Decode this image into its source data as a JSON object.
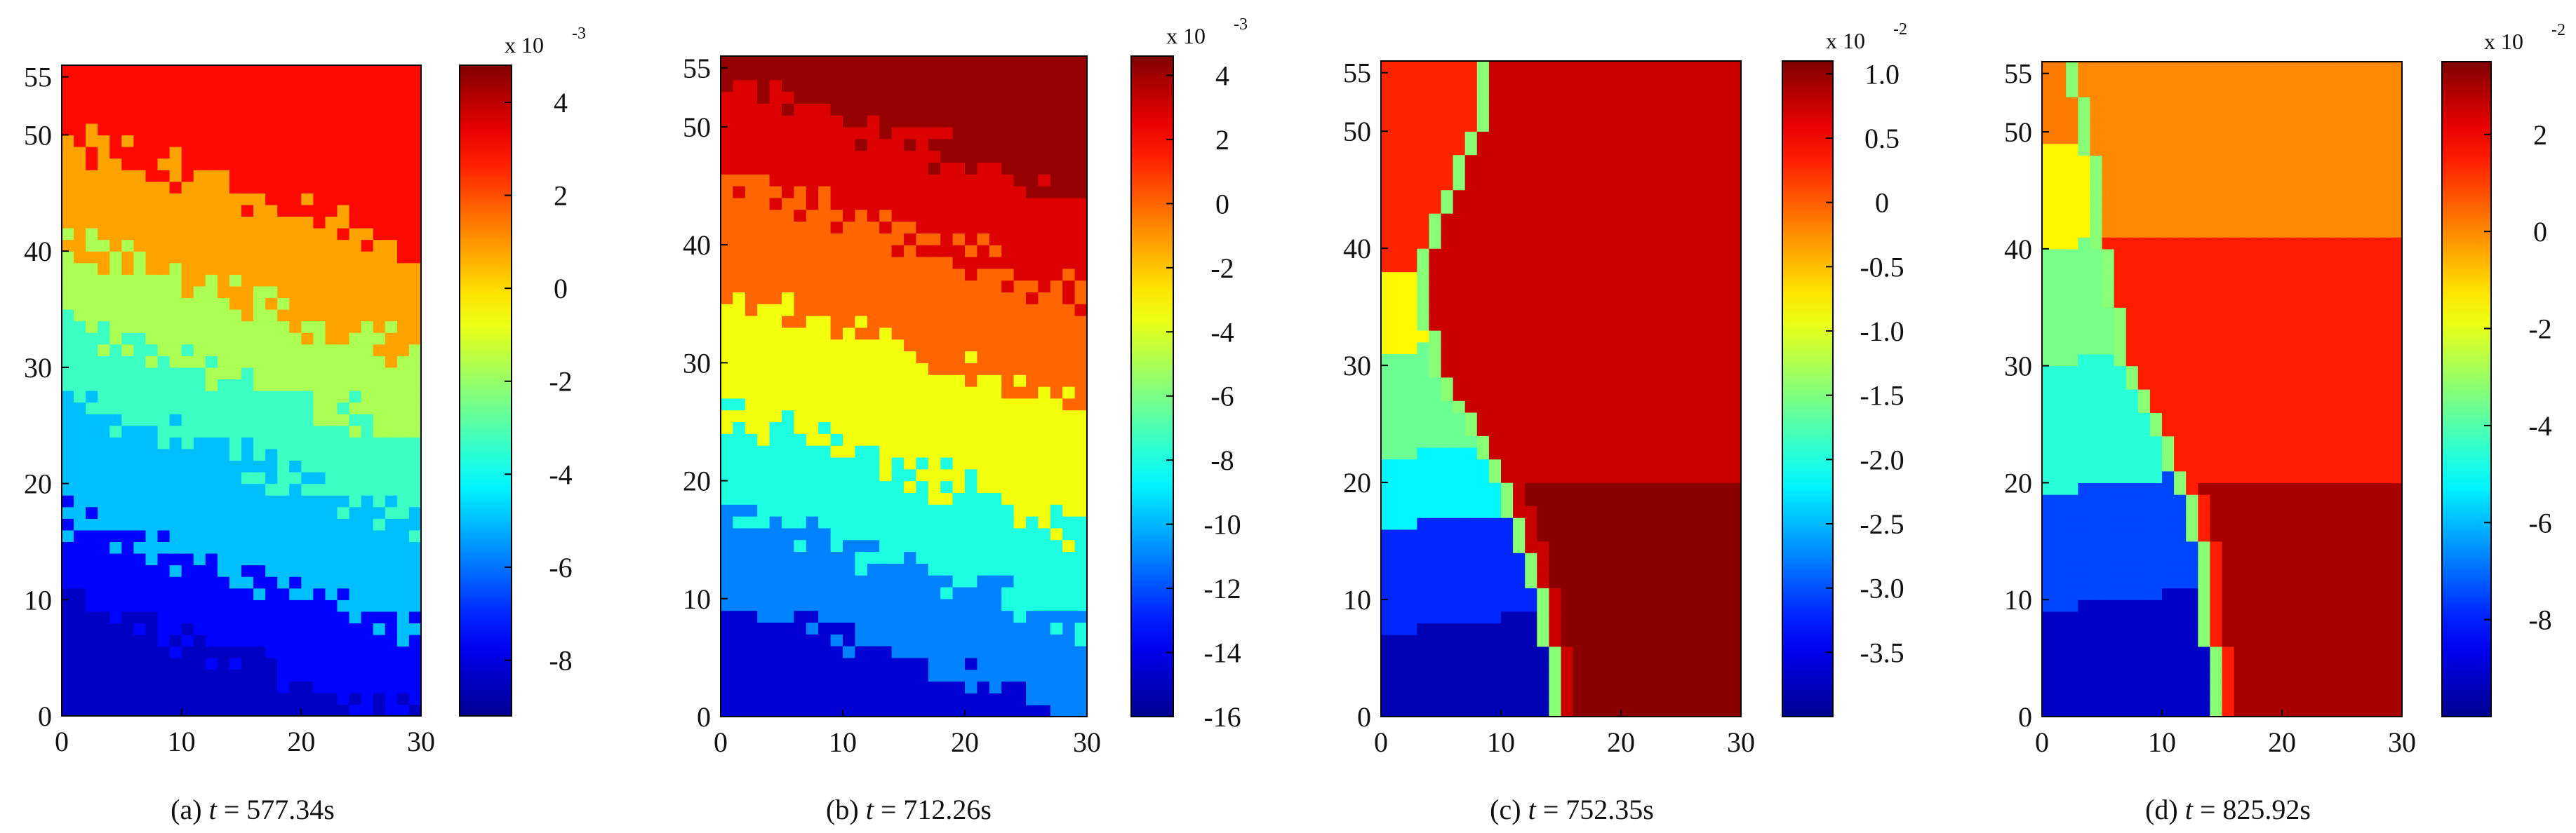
{
  "figure": {
    "panels": [
      {
        "label": "(a)",
        "time_var": "t",
        "equals": "=",
        "time_value": "577.34s"
      },
      {
        "label": "(b)",
        "time_var": "t",
        "equals": "=",
        "time_value": "712.26s"
      },
      {
        "label": "(c)",
        "time_var": "t",
        "equals": "=",
        "time_value": "752.35s"
      },
      {
        "label": "(d)",
        "time_var": "t",
        "equals": "=",
        "time_value": "825.92s"
      }
    ]
  },
  "colors": {
    "colormap": "jet",
    "jet_stops": [
      "#00008f",
      "#0000ff",
      "#00ffff",
      "#ffff00",
      "#ff0000",
      "#800000"
    ]
  },
  "chart_data": [
    {
      "type": "heatmap",
      "xlim": [
        0,
        30
      ],
      "ylim": [
        0,
        56
      ],
      "xticks": [
        "0",
        "10",
        "20",
        "30"
      ],
      "yticks": [
        "0",
        "10",
        "20",
        "30",
        "40",
        "50",
        "55"
      ],
      "colorbar": {
        "clim": [
          -9.2,
          4.8
        ],
        "exponent": "x 10",
        "power": "-3",
        "ticks": [
          "4",
          "2",
          "0",
          "-2",
          "-4",
          "-6",
          "-8"
        ]
      },
      "field": {
        "pattern": "layered-noisy",
        "bands": [
          {
            "y_top": 5,
            "value": -8.4
          },
          {
            "y_top": 12,
            "value": -7.5
          },
          {
            "y_top": 22,
            "value": -5.0
          },
          {
            "y_top": 29,
            "value": -3.3
          },
          {
            "y_top": 36,
            "value": -1.7
          },
          {
            "y_top": 45,
            "value": 0.8
          },
          {
            "y_top": 56,
            "value": 3.0
          }
        ]
      }
    },
    {
      "type": "heatmap",
      "xlim": [
        0,
        30
      ],
      "ylim": [
        0,
        56
      ],
      "xticks": [
        "0",
        "10",
        "20",
        "30"
      ],
      "yticks": [
        "0",
        "10",
        "20",
        "30",
        "40",
        "50",
        "55"
      ],
      "colorbar": {
        "clim": [
          -16,
          4.6
        ],
        "exponent": "x 10",
        "power": "-3",
        "ticks": [
          "4",
          "2",
          "0",
          "-2",
          "-4",
          "-6",
          "-8",
          "-10",
          "-12",
          "-14",
          "-16"
        ]
      },
      "field": {
        "pattern": "layered-noisy",
        "bands": [
          {
            "y_top": 5,
            "value": -14.5
          },
          {
            "y_top": 13,
            "value": -11.0
          },
          {
            "y_top": 21,
            "value": -8.0
          },
          {
            "y_top": 31,
            "value": -3.5
          },
          {
            "y_top": 41,
            "value": 0.0
          },
          {
            "y_top": 49,
            "value": 2.8
          },
          {
            "y_top": 56,
            "value": 4.2
          }
        ]
      }
    },
    {
      "type": "heatmap",
      "xlim": [
        0,
        30
      ],
      "ylim": [
        0,
        56
      ],
      "xticks": [
        "0",
        "10",
        "20",
        "30"
      ],
      "yticks": [
        "0",
        "10",
        "20",
        "30",
        "40",
        "50",
        "55"
      ],
      "colorbar": {
        "clim": [
          -4.0,
          1.1
        ],
        "exponent": "x 10",
        "power": "-2",
        "ticks": [
          "1.0",
          "0.5",
          "0",
          "-0.5",
          "-1.0",
          "-1.5",
          "-2.0",
          "-2.5",
          "-3.0",
          "-3.5"
        ]
      },
      "field": {
        "pattern": "fracture",
        "front": [
          [
            15,
            0
          ],
          [
            14,
            6
          ],
          [
            12.5,
            13
          ],
          [
            10.5,
            19
          ],
          [
            8.5,
            23
          ],
          [
            5,
            29
          ],
          [
            3.5,
            35
          ],
          [
            4,
            40
          ],
          [
            6,
            45
          ],
          [
            8,
            50
          ],
          [
            9,
            56
          ]
        ],
        "left_bands": [
          {
            "y_top": 7,
            "value": -3.8
          },
          {
            "y_top": 16,
            "value": -3.2
          },
          {
            "y_top": 22,
            "value": -2.2
          },
          {
            "y_top": 31,
            "value": -1.6
          },
          {
            "y_top": 38,
            "value": -0.8
          },
          {
            "y_top": 56,
            "value": 0.3
          }
        ],
        "right_value": 0.75,
        "corner_value": 1.05,
        "corner_top": 20
      }
    },
    {
      "type": "heatmap",
      "xlim": [
        0,
        30
      ],
      "ylim": [
        0,
        56
      ],
      "xticks": [
        "0",
        "10",
        "20",
        "30"
      ],
      "yticks": [
        "0",
        "10",
        "20",
        "30",
        "40",
        "50",
        "55"
      ],
      "colorbar": {
        "clim": [
          -10,
          3.5
        ],
        "exponent": "x 10",
        "power": "-2",
        "ticks": [
          "2",
          "0",
          "-2",
          "-4",
          "-6",
          "-8"
        ]
      },
      "field": {
        "pattern": "fracture",
        "front": [
          [
            15,
            0
          ],
          [
            14,
            6
          ],
          [
            13.5,
            13
          ],
          [
            12,
            19
          ],
          [
            10,
            24
          ],
          [
            7,
            30
          ],
          [
            6,
            35
          ],
          [
            5,
            40
          ],
          [
            4.5,
            46
          ],
          [
            3.5,
            51
          ],
          [
            2.5,
            56
          ]
        ],
        "left_bands": [
          {
            "y_top": 9,
            "value": -9.2
          },
          {
            "y_top": 19,
            "value": -7.5
          },
          {
            "y_top": 30,
            "value": -4.6
          },
          {
            "y_top": 40,
            "value": -3.5
          },
          {
            "y_top": 49,
            "value": -1.5
          },
          {
            "y_top": 56,
            "value": 0.2
          }
        ],
        "right_value": 1.5,
        "upper_value": 0.0,
        "upper_bottom": 41,
        "corner_value": 3.0,
        "corner_top": 20
      }
    }
  ]
}
